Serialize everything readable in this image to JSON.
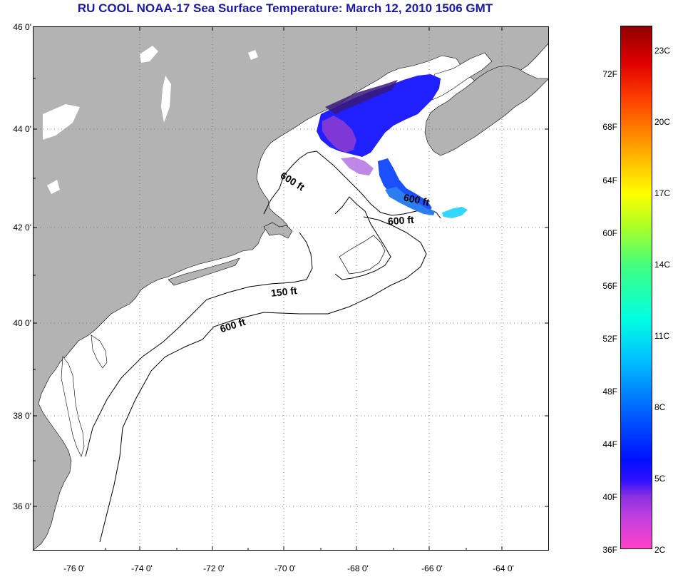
{
  "title": "RU COOL  NOAA-17  Sea Surface Temperature:  March 12, 2010 1506 GMT",
  "latitude_labels": [
    "46 0'",
    "44 0'",
    "42 0'",
    "40 0'",
    "38 0'",
    "36 0'"
  ],
  "longitude_labels": [
    "-76 0'",
    "-74 0'",
    "-72 0'",
    "-70 0'",
    "-68 0'",
    "-66 0'",
    "-64 0'"
  ],
  "contour_labels": {
    "a": "600 ft",
    "b": "600 ft",
    "c": "600 ft",
    "d": "150 ft",
    "e": "600 ft"
  },
  "colorbar": {
    "fahrenheit_labels": [
      "72F",
      "68F",
      "64F",
      "60F",
      "56F",
      "52F",
      "48F",
      "44F",
      "40F",
      "36F"
    ],
    "celsius_labels": [
      "23C",
      "20C",
      "17C",
      "14C",
      "11C",
      "8C",
      "5C",
      "2C"
    ]
  },
  "colors": {
    "land": "#b3b3b3",
    "title": "#1a1aa6",
    "ocean": "#ffffff",
    "sst_cold": "#2020ff",
    "sst_purple": "#8a3ad0",
    "sst_cyan": "#30d8ff"
  }
}
